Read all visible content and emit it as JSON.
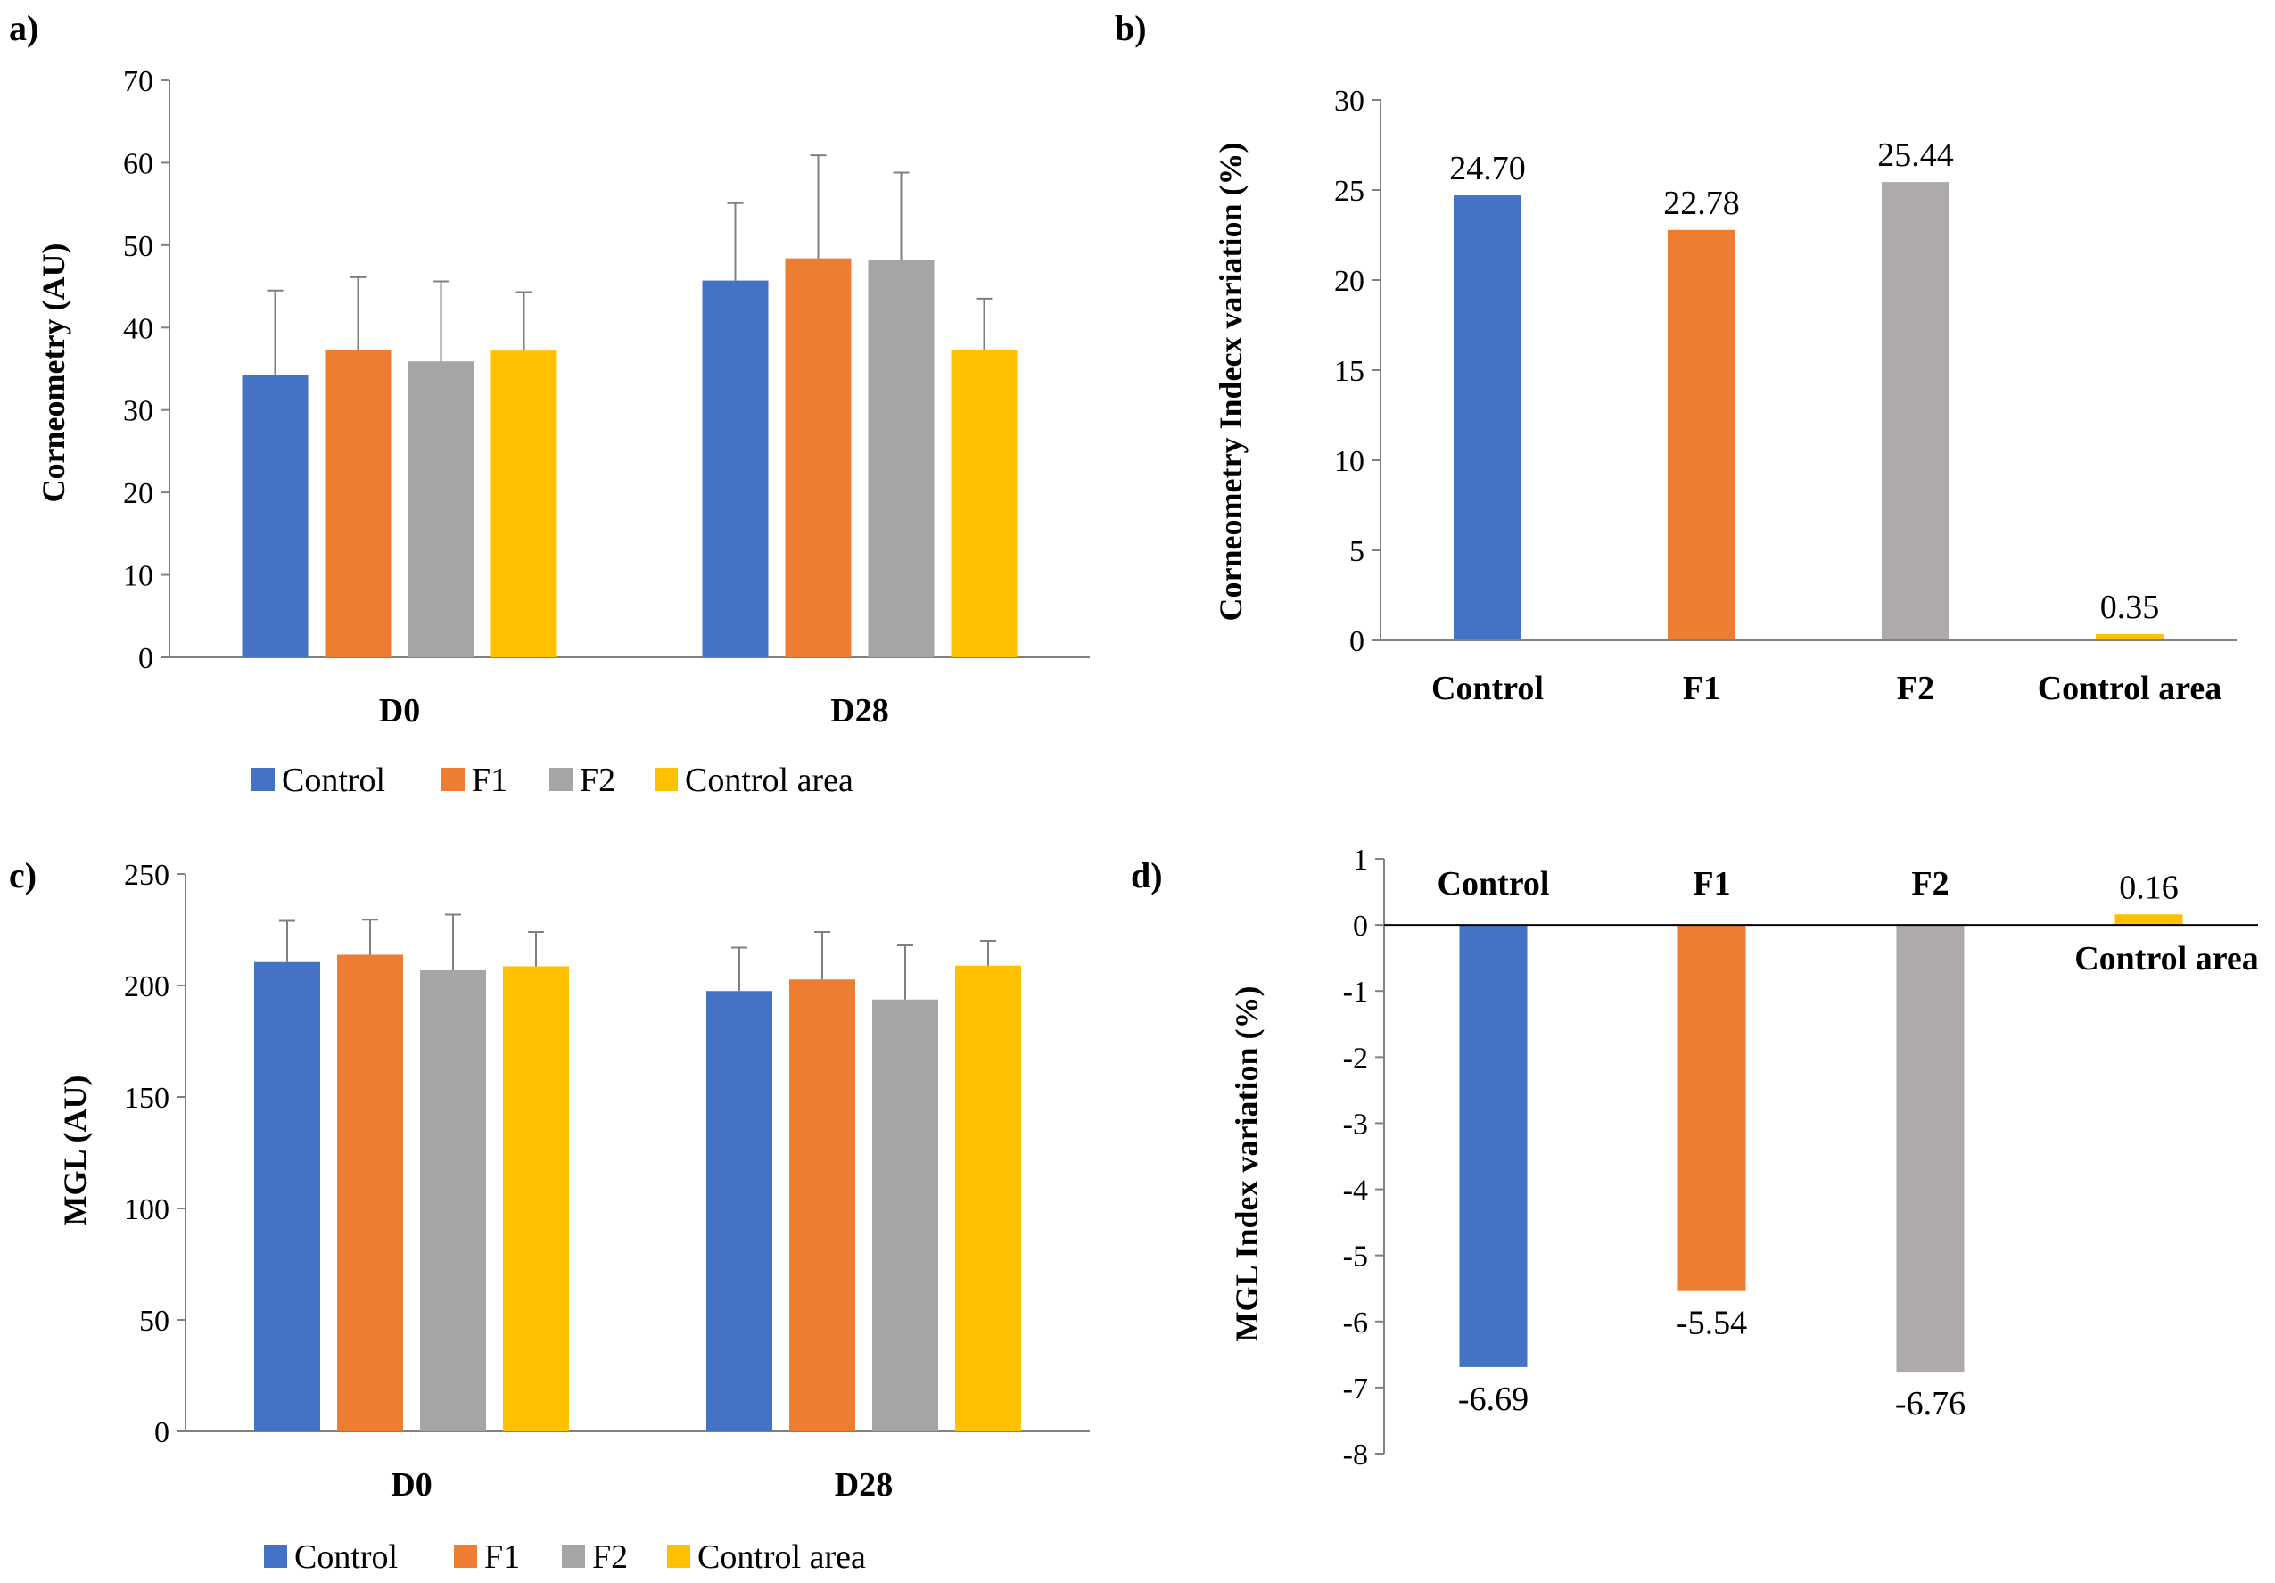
{
  "series_names": [
    "Control",
    "F1",
    "F2",
    "Control area"
  ],
  "colors": {
    "Control": "#4472C4",
    "F1": "#ED7D31",
    "F2": "#A5A5A5",
    "F2_b": "#AEAAAA",
    "Control area": "#FFC000",
    "axis": "#808080",
    "error": "#7F7F7F"
  },
  "chart_data": [
    {
      "id": "a",
      "panel_label": "a)",
      "type": "bar",
      "categories": [
        "D0",
        "D28"
      ],
      "series": [
        {
          "name": "Control",
          "values": [
            34.3,
            45.7
          ],
          "errors": [
            10.2,
            9.4
          ]
        },
        {
          "name": "F1",
          "values": [
            37.3,
            48.4
          ],
          "errors": [
            8.8,
            12.5
          ]
        },
        {
          "name": "F2",
          "values": [
            35.9,
            48.2
          ],
          "errors": [
            9.7,
            10.6
          ]
        },
        {
          "name": "Control area",
          "values": [
            37.2,
            37.3
          ],
          "errors": [
            7.1,
            6.2
          ]
        }
      ],
      "ylabel": "Corneometry (AU)",
      "ylim": [
        0,
        70
      ],
      "yticks": [
        0,
        10,
        20,
        30,
        40,
        50,
        60,
        70
      ],
      "yticklabels": [
        "0",
        "10",
        "20",
        "30",
        "40",
        "50",
        "60",
        "70"
      ],
      "legend": "bottom",
      "grid": false
    },
    {
      "id": "b",
      "panel_label": "b)",
      "type": "bar",
      "categories": [
        "Control",
        "F1",
        "F2",
        "Control area"
      ],
      "values": [
        24.7,
        22.78,
        25.44,
        0.35
      ],
      "data_labels": [
        "24.70",
        "22.78",
        "25.44",
        "0.35"
      ],
      "ylabel": "Corneometry Indecx variation (%)",
      "ylim": [
        0,
        30
      ],
      "yticks": [
        0,
        5,
        10,
        15,
        20,
        25,
        30
      ],
      "yticklabels": [
        "0",
        "5",
        "10",
        "15",
        "20",
        "25",
        "30"
      ],
      "grid": false
    },
    {
      "id": "c",
      "panel_label": "c)",
      "type": "bar",
      "categories": [
        "D0",
        "D28"
      ],
      "series": [
        {
          "name": "Control",
          "values": [
            210.5,
            197.5
          ],
          "errors": [
            18.5,
            19.5
          ]
        },
        {
          "name": "F1",
          "values": [
            213.8,
            202.7
          ],
          "errors": [
            15.7,
            21.3
          ]
        },
        {
          "name": "F2",
          "values": [
            206.8,
            193.7
          ],
          "errors": [
            25.0,
            24.3
          ]
        },
        {
          "name": "Control area",
          "values": [
            208.6,
            208.9
          ],
          "errors": [
            15.4,
            11.1
          ]
        }
      ],
      "ylabel": "MGL (AU)",
      "ylim": [
        0,
        250
      ],
      "yticks": [
        0,
        50,
        100,
        150,
        200,
        250
      ],
      "yticklabels": [
        "0",
        "50",
        "100",
        "150",
        "200",
        "250"
      ],
      "legend": "bottom",
      "grid": false
    },
    {
      "id": "d",
      "panel_label": "d)",
      "type": "bar",
      "categories": [
        "Control",
        "F1",
        "F2",
        "Control area"
      ],
      "values": [
        -6.69,
        -5.54,
        -6.76,
        0.16
      ],
      "data_labels": [
        "-6.69",
        "-5.54",
        "-6.76",
        "0.16"
      ],
      "ylabel": "MGL Index variation (%)",
      "ylim": [
        -8,
        1
      ],
      "yticks": [
        -8,
        -7,
        -6,
        -5,
        -4,
        -3,
        -2,
        -1,
        0,
        1
      ],
      "yticklabels": [
        "-8",
        "-7",
        "-6",
        "-5",
        "-4",
        "-3",
        "-2",
        "-1",
        "0",
        "1"
      ],
      "grid": false
    }
  ]
}
